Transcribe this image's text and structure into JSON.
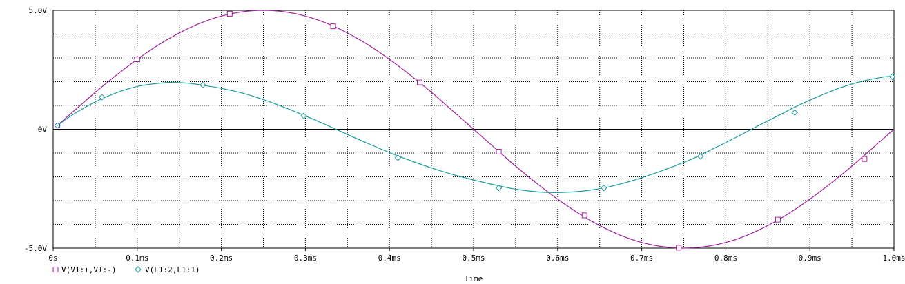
{
  "chart_data": {
    "type": "line",
    "xlabel": "Time",
    "ylabel": "",
    "title": "",
    "xlim": [
      0,
      1.0
    ],
    "ylim": [
      -5.0,
      5.0
    ],
    "x_ticks": [
      {
        "value": 0.0,
        "label": "0s"
      },
      {
        "value": 0.1,
        "label": "0.1ms"
      },
      {
        "value": 0.2,
        "label": "0.2ms"
      },
      {
        "value": 0.3,
        "label": "0.3ms"
      },
      {
        "value": 0.4,
        "label": "0.4ms"
      },
      {
        "value": 0.5,
        "label": "0.5ms"
      },
      {
        "value": 0.6,
        "label": "0.6ms"
      },
      {
        "value": 0.7,
        "label": "0.7ms"
      },
      {
        "value": 0.8,
        "label": "0.8ms"
      },
      {
        "value": 0.9,
        "label": "0.9ms"
      },
      {
        "value": 1.0,
        "label": "1.0ms"
      }
    ],
    "y_ticks": [
      {
        "value": 5.0,
        "label": "5.0V"
      },
      {
        "value": 0.0,
        "label": "0V"
      },
      {
        "value": -5.0,
        "label": "-5.0V"
      }
    ],
    "grid": true,
    "legend_position": "bottom-left",
    "series": [
      {
        "name": "V(V1:+,V1:-)",
        "color": "#a0209c",
        "marker": "square",
        "x": [
          0.005,
          0.025,
          0.05,
          0.075,
          0.1,
          0.125,
          0.15,
          0.175,
          0.2,
          0.225,
          0.25,
          0.275,
          0.3,
          0.325,
          0.35,
          0.375,
          0.4,
          0.425,
          0.45,
          0.475,
          0.5,
          0.525,
          0.55,
          0.575,
          0.6,
          0.625,
          0.65,
          0.675,
          0.7,
          0.725,
          0.75,
          0.775,
          0.8,
          0.825,
          0.85,
          0.875,
          0.9,
          0.925,
          0.95,
          0.975,
          1.0
        ],
        "y": [
          0.16,
          0.78,
          1.55,
          2.27,
          2.94,
          3.54,
          4.05,
          4.46,
          4.76,
          4.94,
          5.0,
          4.94,
          4.76,
          4.46,
          4.05,
          3.54,
          2.94,
          2.27,
          1.55,
          0.78,
          0.0,
          -0.78,
          -1.55,
          -2.27,
          -2.94,
          -3.54,
          -4.05,
          -4.46,
          -4.76,
          -4.94,
          -5.0,
          -4.94,
          -4.76,
          -4.46,
          -4.05,
          -3.54,
          -2.94,
          -2.27,
          -1.55,
          -0.78,
          0.0
        ],
        "marker_points": [
          {
            "x": 0.005,
            "y": 0.16
          },
          {
            "x": 0.1,
            "y": 2.94
          },
          {
            "x": 0.21,
            "y": 4.86
          },
          {
            "x": 0.333,
            "y": 4.33
          },
          {
            "x": 0.436,
            "y": 1.97
          },
          {
            "x": 0.53,
            "y": -0.94
          },
          {
            "x": 0.632,
            "y": -3.62
          },
          {
            "x": 0.744,
            "y": -4.98
          },
          {
            "x": 0.862,
            "y": -3.8
          },
          {
            "x": 0.965,
            "y": -1.25
          }
        ]
      },
      {
        "name": "V(L1:2,L1:1)",
        "color": "#1a9c9c",
        "marker": "diamond",
        "x": [
          0.005,
          0.025,
          0.05,
          0.075,
          0.1,
          0.125,
          0.14,
          0.16,
          0.18,
          0.2,
          0.225,
          0.25,
          0.275,
          0.3,
          0.325,
          0.35,
          0.375,
          0.4,
          0.425,
          0.45,
          0.475,
          0.5,
          0.525,
          0.55,
          0.575,
          0.59,
          0.61,
          0.635,
          0.66,
          0.685,
          0.71,
          0.735,
          0.76,
          0.785,
          0.81,
          0.835,
          0.86,
          0.885,
          0.91,
          0.935,
          0.96,
          0.985,
          1.0
        ],
        "y": [
          0.16,
          0.65,
          1.15,
          1.53,
          1.8,
          1.93,
          1.97,
          1.94,
          1.84,
          1.72,
          1.52,
          1.25,
          0.92,
          0.56,
          0.18,
          -0.22,
          -0.61,
          -0.98,
          -1.32,
          -1.63,
          -1.9,
          -2.13,
          -2.34,
          -2.52,
          -2.63,
          -2.66,
          -2.65,
          -2.58,
          -2.43,
          -2.2,
          -1.92,
          -1.6,
          -1.25,
          -0.82,
          -0.38,
          0.08,
          0.53,
          0.98,
          1.38,
          1.73,
          2.0,
          2.18,
          2.24
        ],
        "marker_points": [
          {
            "x": 0.005,
            "y": 0.16
          },
          {
            "x": 0.058,
            "y": 1.35
          },
          {
            "x": 0.178,
            "y": 1.86
          },
          {
            "x": 0.298,
            "y": 0.56
          },
          {
            "x": 0.41,
            "y": -1.2
          },
          {
            "x": 0.53,
            "y": -2.47
          },
          {
            "x": 0.655,
            "y": -2.47
          },
          {
            "x": 0.77,
            "y": -1.14
          },
          {
            "x": 0.882,
            "y": 0.7
          },
          {
            "x": 0.998,
            "y": 2.21
          }
        ]
      }
    ]
  }
}
